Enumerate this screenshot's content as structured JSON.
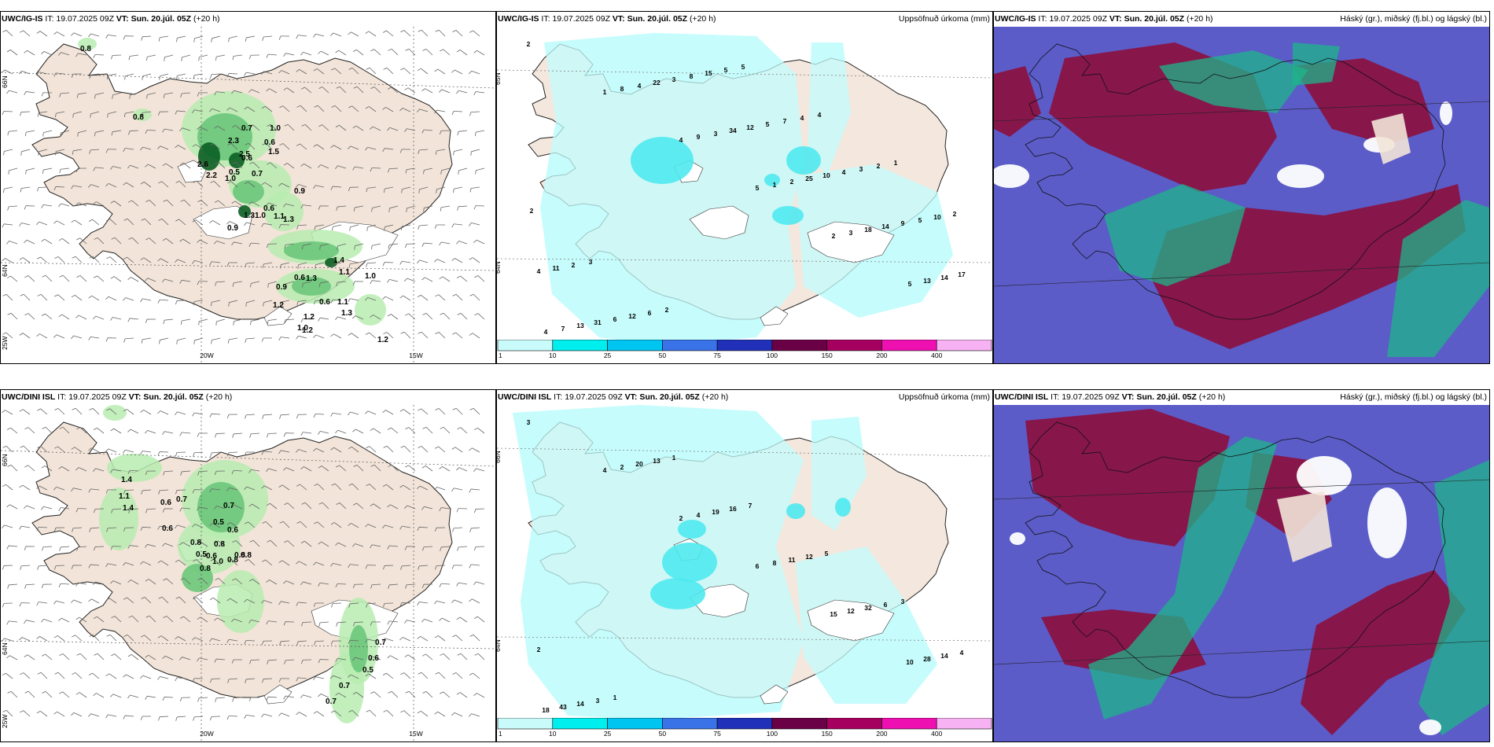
{
  "panels": [
    {
      "model": "UWC/IG-IS",
      "it_label": "IT:",
      "it_value": "19.07.2025 09Z",
      "vt_label": "VT:",
      "vt_value": "Sun. 20.júl. 05Z",
      "lead": "(+20 h)",
      "right_title": "",
      "lon_labels": [
        "20W",
        "15W"
      ],
      "lat_labels": [
        "66N",
        "64N",
        "25W"
      ],
      "values": [
        "0.8",
        "0.8",
        "0.7",
        "1.0",
        "0.6",
        "1.5",
        "2.3",
        "2.5",
        "2.6",
        "0.6",
        "0.5",
        "0.7",
        "2.2",
        "1.0",
        "0.9",
        "0.6",
        "1.3",
        "1.1",
        "1.3",
        "0.9",
        "1.0",
        "1.4",
        "1.0",
        "1.3",
        "1.1",
        "0.9",
        "0.6",
        "1.1",
        "1.2",
        "0.6",
        "1.3",
        "1.2",
        "1.0",
        "1.2",
        "1.2"
      ]
    },
    {
      "model": "UWC/IG-IS",
      "it_label": "IT:",
      "it_value": "19.07.2025 09Z",
      "vt_label": "VT:",
      "vt_value": "Sun. 20.júl. 05Z",
      "lead": "(+20 h)",
      "right_title": "Uppsöfnuð úrkoma (mm)",
      "lat_labels": [
        "65N",
        "64N"
      ],
      "values": [
        "2",
        "1",
        "4",
        "5",
        "2",
        "5",
        "4",
        "8",
        "9",
        "1",
        "3",
        "13",
        "7",
        "4",
        "3",
        "2",
        "18",
        "14",
        "13",
        "22",
        "34",
        "25",
        "14",
        "17",
        "31",
        "3",
        "12",
        "10",
        "9",
        "4",
        "6",
        "8",
        "5",
        "4",
        "5",
        "11",
        "12",
        "15",
        "7",
        "3",
        "10",
        "2",
        "6",
        "5",
        "4",
        "2",
        "2",
        "3",
        "2",
        "5",
        "4",
        "1",
        "2"
      ]
    },
    {
      "model": "UWC/IG-IS",
      "it_label": "IT:",
      "it_value": "19.07.2025 09Z",
      "vt_label": "VT:",
      "vt_value": "Sun. 20.júl. 05Z",
      "lead": "(+20 h)",
      "right_title": "Háský (gr.), miðský (fj.bl.) og lágský (bl.)"
    },
    {
      "model": "UWC/DINI ISL",
      "it_label": "IT:",
      "it_value": "19.07.2025 09Z",
      "vt_label": "VT:",
      "vt_value": "Sun. 20.júl. 05Z",
      "lead": "(+20 h)",
      "right_title": "",
      "lon_labels": [
        "20W",
        "15W"
      ],
      "lat_labels": [
        "66N",
        "64N",
        "25W"
      ],
      "values": [
        "1.4",
        "1.1",
        "1.4",
        "0.7",
        "0.6",
        "0.7",
        "0.6",
        "0.5",
        "0.6",
        "0.8",
        "0.8",
        "0.5",
        "0.6",
        "0.8",
        "0.8",
        "1.0",
        "0.8",
        "0.8",
        "0.7",
        "0.6",
        "0.5",
        "0.7",
        "0.7"
      ]
    },
    {
      "model": "UWC/DINI ISL",
      "it_label": "IT:",
      "it_value": "19.07.2025 09Z",
      "vt_label": "VT:",
      "vt_value": "Sun. 20.júl. 05Z",
      "lead": "(+20 h)",
      "right_title": "Uppsöfnuð úrkoma (mm)",
      "lat_labels": [
        "66N",
        "64N"
      ],
      "values": [
        "3",
        "4",
        "2",
        "6",
        "15",
        "10",
        "18",
        "2",
        "4",
        "8",
        "12",
        "28",
        "43",
        "20",
        "19",
        "11",
        "32",
        "14",
        "14",
        "13",
        "16",
        "12",
        "6",
        "4",
        "3",
        "1",
        "7",
        "5",
        "3",
        "2",
        "1"
      ]
    },
    {
      "model": "UWC/DINI ISL",
      "it_label": "IT:",
      "it_value": "19.07.2025 09Z",
      "vt_label": "VT:",
      "vt_value": "Sun. 20.júl. 05Z",
      "lead": "(+20 h)",
      "right_title": "Háský (gr.), miðský (fj.bl.) og lágský (bl.)"
    }
  ],
  "colorbar": {
    "labels": [
      "1",
      "10",
      "25",
      "50",
      "75",
      "100",
      "150",
      "200",
      "400"
    ],
    "colors": [
      "#c9fbfb",
      "#00eeee",
      "#00c5f0",
      "#3a72e8",
      "#2030b8",
      "#6a0045",
      "#a5005f",
      "#ee10b0",
      "#f7b2f4"
    ]
  },
  "colors": {
    "land": "#f2e4d8",
    "precip_light": "#b7ecb0",
    "precip_mid": "#6cc77a",
    "precip_dark": "#0a5e24",
    "cyan_light": "#c6fcfc",
    "cyan_mid": "#4fe9ef",
    "cloud_high": "#1db48a",
    "cloud_mid": "#8a1245",
    "cloud_low": "#5b5cc8"
  }
}
